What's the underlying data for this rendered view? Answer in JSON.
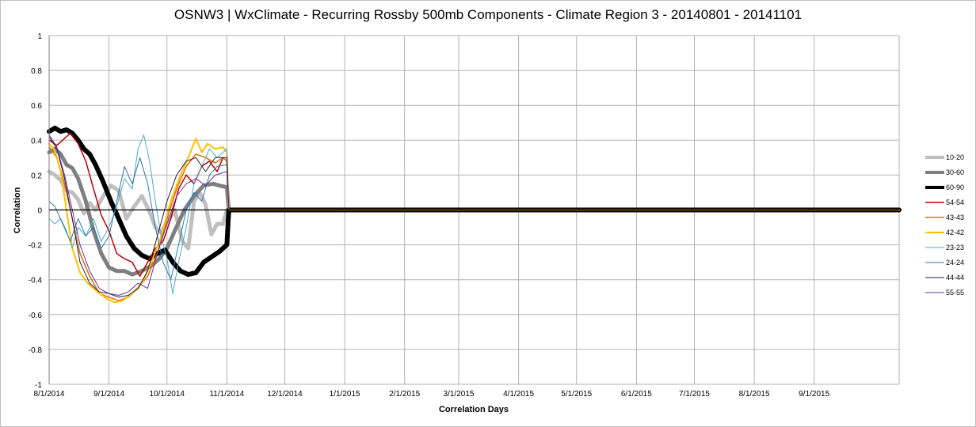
{
  "chart_data": {
    "type": "line",
    "title": "OSNW3 |  WxClimate - Recurring Rossby 500mb Components  - Climate Region 3 - 20140801 - 20141101",
    "xlabel": "Correlation Days",
    "ylabel": "Correlation",
    "ylim": [
      -1,
      1
    ],
    "yticks": [
      "-1",
      "-0.8",
      "-0.6",
      "-0.4",
      "-0.2",
      "0",
      "0.2",
      "0.4",
      "0.6",
      "0.8",
      "1"
    ],
    "xlim": [
      "2014-08-01",
      "2015-10-15"
    ],
    "xticks": [
      "8/1/2014",
      "9/1/2014",
      "10/1/2014",
      "11/1/2014",
      "12/1/2014",
      "1/1/2015",
      "2/1/2015",
      "3/1/2015",
      "4/1/2015",
      "5/1/2015",
      "6/1/2015",
      "7/1/2015",
      "8/1/2015",
      "9/1/2015"
    ],
    "grid": true,
    "legend_position": "right",
    "series": [
      {
        "name": "10-20",
        "color": "#bfbfbf",
        "width": 5,
        "points": [
          [
            "2014-08-01",
            0.22
          ],
          [
            "2014-08-04",
            0.2
          ],
          [
            "2014-08-07",
            0.17
          ],
          [
            "2014-08-10",
            0.11
          ],
          [
            "2014-08-13",
            0.1
          ],
          [
            "2014-08-16",
            0.06
          ],
          [
            "2014-08-19",
            -0.02
          ],
          [
            "2014-08-22",
            0.04
          ],
          [
            "2014-08-25",
            0.0
          ],
          [
            "2014-08-29",
            0.08
          ],
          [
            "2014-09-02",
            0.14
          ],
          [
            "2014-09-06",
            0.11
          ],
          [
            "2014-09-10",
            -0.05
          ],
          [
            "2014-09-14",
            0.02
          ],
          [
            "2014-09-18",
            0.08
          ],
          [
            "2014-09-22",
            -0.01
          ],
          [
            "2014-09-25",
            -0.1
          ],
          [
            "2014-09-28",
            -0.13
          ],
          [
            "2014-10-01",
            -0.07
          ],
          [
            "2014-10-05",
            0.0
          ],
          [
            "2014-10-09",
            -0.18
          ],
          [
            "2014-10-12",
            -0.22
          ],
          [
            "2014-10-15",
            0.05
          ],
          [
            "2014-10-18",
            0.1
          ],
          [
            "2014-10-21",
            0.03
          ],
          [
            "2014-10-24",
            -0.14
          ],
          [
            "2014-10-27",
            -0.08
          ],
          [
            "2014-10-30",
            -0.08
          ],
          [
            "2014-11-01",
            0.0
          ],
          [
            "2015-10-15",
            0.0
          ]
        ]
      },
      {
        "name": "30-60",
        "color": "#7f7f7f",
        "width": 5,
        "points": [
          [
            "2014-08-01",
            0.33
          ],
          [
            "2014-08-04",
            0.35
          ],
          [
            "2014-08-07",
            0.32
          ],
          [
            "2014-08-10",
            0.26
          ],
          [
            "2014-08-13",
            0.24
          ],
          [
            "2014-08-16",
            0.18
          ],
          [
            "2014-08-20",
            0.05
          ],
          [
            "2014-08-24",
            -0.12
          ],
          [
            "2014-08-28",
            -0.25
          ],
          [
            "2014-09-01",
            -0.33
          ],
          [
            "2014-09-05",
            -0.35
          ],
          [
            "2014-09-09",
            -0.35
          ],
          [
            "2014-09-13",
            -0.37
          ],
          [
            "2014-09-18",
            -0.35
          ],
          [
            "2014-09-23",
            -0.32
          ],
          [
            "2014-09-27",
            -0.28
          ],
          [
            "2014-10-01",
            -0.22
          ],
          [
            "2014-10-05",
            -0.12
          ],
          [
            "2014-10-10",
            0.0
          ],
          [
            "2014-10-15",
            0.08
          ],
          [
            "2014-10-20",
            0.14
          ],
          [
            "2014-10-25",
            0.15
          ],
          [
            "2014-10-28",
            0.14
          ],
          [
            "2014-11-01",
            0.13
          ],
          [
            "2014-11-02",
            0.0
          ],
          [
            "2015-10-15",
            0.0
          ]
        ]
      },
      {
        "name": "60-90",
        "color": "#000000",
        "width": 6,
        "points": [
          [
            "2014-08-01",
            0.45
          ],
          [
            "2014-08-04",
            0.47
          ],
          [
            "2014-08-07",
            0.45
          ],
          [
            "2014-08-10",
            0.46
          ],
          [
            "2014-08-13",
            0.44
          ],
          [
            "2014-08-16",
            0.4
          ],
          [
            "2014-08-19",
            0.35
          ],
          [
            "2014-08-22",
            0.32
          ],
          [
            "2014-08-25",
            0.26
          ],
          [
            "2014-08-29",
            0.16
          ],
          [
            "2014-09-02",
            0.05
          ],
          [
            "2014-09-06",
            -0.05
          ],
          [
            "2014-09-10",
            -0.15
          ],
          [
            "2014-09-14",
            -0.22
          ],
          [
            "2014-09-18",
            -0.26
          ],
          [
            "2014-09-22",
            -0.28
          ],
          [
            "2014-09-26",
            -0.25
          ],
          [
            "2014-09-30",
            -0.23
          ],
          [
            "2014-10-04",
            -0.3
          ],
          [
            "2014-10-08",
            -0.35
          ],
          [
            "2014-10-12",
            -0.37
          ],
          [
            "2014-10-16",
            -0.36
          ],
          [
            "2014-10-20",
            -0.3
          ],
          [
            "2014-10-24",
            -0.27
          ],
          [
            "2014-10-28",
            -0.24
          ],
          [
            "2014-11-01",
            -0.2
          ],
          [
            "2014-11-02",
            0.0
          ],
          [
            "2015-10-15",
            0.0
          ]
        ]
      },
      {
        "name": "54-54",
        "color": "#c00000",
        "width": 1.5,
        "points": [
          [
            "2014-08-01",
            0.4
          ],
          [
            "2014-08-05",
            0.37
          ],
          [
            "2014-08-09",
            0.41
          ],
          [
            "2014-08-12",
            0.44
          ],
          [
            "2014-08-16",
            0.38
          ],
          [
            "2014-08-20",
            0.28
          ],
          [
            "2014-08-24",
            0.12
          ],
          [
            "2014-08-28",
            -0.03
          ],
          [
            "2014-09-01",
            -0.12
          ],
          [
            "2014-09-05",
            -0.25
          ],
          [
            "2014-09-09",
            -0.28
          ],
          [
            "2014-09-13",
            -0.3
          ],
          [
            "2014-09-17",
            -0.38
          ],
          [
            "2014-09-21",
            -0.3
          ],
          [
            "2014-09-25",
            -0.22
          ],
          [
            "2014-09-29",
            -0.18
          ],
          [
            "2014-10-03",
            -0.05
          ],
          [
            "2014-10-07",
            0.12
          ],
          [
            "2014-10-11",
            0.2
          ],
          [
            "2014-10-15",
            0.15
          ],
          [
            "2014-10-19",
            0.25
          ],
          [
            "2014-10-23",
            0.28
          ],
          [
            "2014-10-27",
            0.22
          ],
          [
            "2014-10-30",
            0.3
          ],
          [
            "2014-11-01",
            0.28
          ],
          [
            "2014-11-02",
            0.0
          ],
          [
            "2015-10-15",
            0.0
          ]
        ]
      },
      {
        "name": "43-43",
        "color": "#e46c0a",
        "width": 1.5,
        "points": [
          [
            "2014-08-01",
            0.36
          ],
          [
            "2014-08-05",
            0.3
          ],
          [
            "2014-08-09",
            0.15
          ],
          [
            "2014-08-13",
            -0.05
          ],
          [
            "2014-08-17",
            -0.25
          ],
          [
            "2014-08-22",
            -0.38
          ],
          [
            "2014-08-27",
            -0.48
          ],
          [
            "2014-09-01",
            -0.5
          ],
          [
            "2014-09-06",
            -0.52
          ],
          [
            "2014-09-11",
            -0.5
          ],
          [
            "2014-09-16",
            -0.45
          ],
          [
            "2014-09-21",
            -0.38
          ],
          [
            "2014-09-26",
            -0.25
          ],
          [
            "2014-10-01",
            -0.05
          ],
          [
            "2014-10-06",
            0.12
          ],
          [
            "2014-10-11",
            0.25
          ],
          [
            "2014-10-16",
            0.32
          ],
          [
            "2014-10-21",
            0.3
          ],
          [
            "2014-10-26",
            0.27
          ],
          [
            "2014-10-30",
            0.3
          ],
          [
            "2014-11-01",
            0.28
          ],
          [
            "2014-11-02",
            0.0
          ],
          [
            "2015-10-15",
            0.0
          ]
        ]
      },
      {
        "name": "42-42",
        "color": "#ffc000",
        "width": 2,
        "points": [
          [
            "2014-08-01",
            0.38
          ],
          [
            "2014-08-04",
            0.34
          ],
          [
            "2014-08-07",
            0.22
          ],
          [
            "2014-08-10",
            0.0
          ],
          [
            "2014-08-13",
            -0.22
          ],
          [
            "2014-08-17",
            -0.36
          ],
          [
            "2014-08-21",
            -0.42
          ],
          [
            "2014-08-26",
            -0.47
          ],
          [
            "2014-08-31",
            -0.51
          ],
          [
            "2014-09-04",
            -0.53
          ],
          [
            "2014-09-08",
            -0.52
          ],
          [
            "2014-09-13",
            -0.48
          ],
          [
            "2014-09-18",
            -0.42
          ],
          [
            "2014-09-23",
            -0.3
          ],
          [
            "2014-09-28",
            -0.15
          ],
          [
            "2014-10-03",
            0.05
          ],
          [
            "2014-10-08",
            0.2
          ],
          [
            "2014-10-12",
            0.3
          ],
          [
            "2014-10-16",
            0.41
          ],
          [
            "2014-10-19",
            0.33
          ],
          [
            "2014-10-22",
            0.38
          ],
          [
            "2014-10-26",
            0.35
          ],
          [
            "2014-10-30",
            0.36
          ],
          [
            "2014-11-01",
            0.33
          ],
          [
            "2014-11-02",
            0.0
          ],
          [
            "2015-10-15",
            0.0
          ]
        ]
      },
      {
        "name": "23-23",
        "color": "#4bacc6",
        "width": 1,
        "points": [
          [
            "2014-08-01",
            -0.05
          ],
          [
            "2014-08-04",
            -0.08
          ],
          [
            "2014-08-07",
            -0.05
          ],
          [
            "2014-08-10",
            -0.12
          ],
          [
            "2014-08-13",
            -0.22
          ],
          [
            "2014-08-16",
            -0.1
          ],
          [
            "2014-08-20",
            -0.15
          ],
          [
            "2014-08-24",
            -0.05
          ],
          [
            "2014-08-28",
            -0.18
          ],
          [
            "2014-09-01",
            -0.1
          ],
          [
            "2014-09-05",
            0.02
          ],
          [
            "2014-09-09",
            0.18
          ],
          [
            "2014-09-13",
            0.12
          ],
          [
            "2014-09-16",
            0.35
          ],
          [
            "2014-09-19",
            0.43
          ],
          [
            "2014-09-22",
            0.28
          ],
          [
            "2014-09-25",
            0.05
          ],
          [
            "2014-09-28",
            -0.15
          ],
          [
            "2014-10-01",
            -0.28
          ],
          [
            "2014-10-04",
            -0.48
          ],
          [
            "2014-10-07",
            -0.3
          ],
          [
            "2014-10-11",
            -0.1
          ],
          [
            "2014-10-15",
            0.15
          ],
          [
            "2014-10-19",
            0.25
          ],
          [
            "2014-10-23",
            0.35
          ],
          [
            "2014-10-27",
            0.3
          ],
          [
            "2014-11-01",
            0.35
          ],
          [
            "2014-11-02",
            0.0
          ],
          [
            "2015-10-15",
            0.0
          ]
        ]
      },
      {
        "name": "24-24",
        "color": "#2e75b6",
        "width": 1,
        "points": [
          [
            "2014-08-01",
            0.05
          ],
          [
            "2014-08-04",
            0.02
          ],
          [
            "2014-08-08",
            -0.08
          ],
          [
            "2014-08-12",
            -0.18
          ],
          [
            "2014-08-16",
            -0.05
          ],
          [
            "2014-08-20",
            -0.15
          ],
          [
            "2014-08-24",
            -0.1
          ],
          [
            "2014-08-28",
            -0.22
          ],
          [
            "2014-09-01",
            -0.15
          ],
          [
            "2014-09-05",
            0.05
          ],
          [
            "2014-09-09",
            0.25
          ],
          [
            "2014-09-13",
            0.15
          ],
          [
            "2014-09-17",
            0.3
          ],
          [
            "2014-09-21",
            0.15
          ],
          [
            "2014-09-25",
            -0.1
          ],
          [
            "2014-09-29",
            -0.3
          ],
          [
            "2014-10-03",
            -0.4
          ],
          [
            "2014-10-07",
            -0.2
          ],
          [
            "2014-10-11",
            0.0
          ],
          [
            "2014-10-15",
            0.1
          ],
          [
            "2014-10-19",
            0.05
          ],
          [
            "2014-10-23",
            0.2
          ],
          [
            "2014-10-27",
            0.25
          ],
          [
            "2014-11-01",
            0.26
          ],
          [
            "2014-11-02",
            0.0
          ],
          [
            "2015-10-15",
            0.0
          ]
        ]
      },
      {
        "name": "44-44",
        "color": "#1f1f3f",
        "width": 1,
        "points": [
          [
            "2014-08-01",
            0.42
          ],
          [
            "2014-08-05",
            0.35
          ],
          [
            "2014-08-09",
            0.18
          ],
          [
            "2014-08-13",
            -0.05
          ],
          [
            "2014-08-17",
            -0.3
          ],
          [
            "2014-08-22",
            -0.42
          ],
          [
            "2014-08-27",
            -0.47
          ],
          [
            "2014-09-01",
            -0.48
          ],
          [
            "2014-09-06",
            -0.5
          ],
          [
            "2014-09-11",
            -0.49
          ],
          [
            "2014-09-16",
            -0.45
          ],
          [
            "2014-09-21",
            -0.35
          ],
          [
            "2014-09-26",
            -0.15
          ],
          [
            "2014-10-01",
            0.05
          ],
          [
            "2014-10-06",
            0.2
          ],
          [
            "2014-10-11",
            0.28
          ],
          [
            "2014-10-16",
            0.3
          ],
          [
            "2014-10-21",
            0.22
          ],
          [
            "2014-10-26",
            0.3
          ],
          [
            "2014-11-01",
            0.3
          ],
          [
            "2014-11-02",
            0.0
          ],
          [
            "2015-10-15",
            0.0
          ]
        ]
      },
      {
        "name": "55-55",
        "color": "#7030a0",
        "width": 1,
        "points": [
          [
            "2014-08-01",
            0.43
          ],
          [
            "2014-08-05",
            0.36
          ],
          [
            "2014-08-09",
            0.2
          ],
          [
            "2014-08-13",
            0.0
          ],
          [
            "2014-08-17",
            -0.2
          ],
          [
            "2014-08-22",
            -0.35
          ],
          [
            "2014-08-27",
            -0.45
          ],
          [
            "2014-09-01",
            -0.48
          ],
          [
            "2014-09-06",
            -0.49
          ],
          [
            "2014-09-11",
            -0.47
          ],
          [
            "2014-09-16",
            -0.42
          ],
          [
            "2014-09-21",
            -0.45
          ],
          [
            "2014-09-26",
            -0.25
          ],
          [
            "2014-10-01",
            -0.08
          ],
          [
            "2014-10-06",
            0.08
          ],
          [
            "2014-10-11",
            0.15
          ],
          [
            "2014-10-16",
            0.18
          ],
          [
            "2014-10-21",
            0.14
          ],
          [
            "2014-10-26",
            0.2
          ],
          [
            "2014-11-01",
            0.22
          ],
          [
            "2014-11-02",
            0.0
          ],
          [
            "2015-10-15",
            0.0
          ]
        ]
      }
    ]
  }
}
